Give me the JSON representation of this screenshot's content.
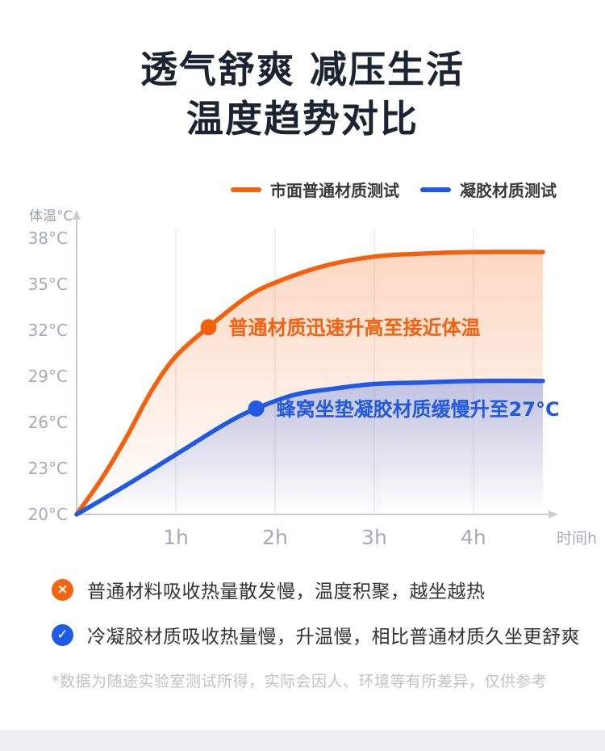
{
  "header": {
    "title_line1": "透气舒爽 减压生活",
    "title_line2": "温度趋势对比"
  },
  "bullets": [
    {
      "icon": "cross-circle-icon",
      "glyph": "×",
      "color": "#f4650f",
      "text": "普通材料吸收热量散发慢，温度积聚，越坐越热"
    },
    {
      "icon": "check-circle-icon",
      "glyph": "✓",
      "color": "#1e5ce8",
      "text": "冷凝胶材质吸收热量慢，升温慢，相比普通材质久坐更舒爽"
    }
  ],
  "footnote": "*数据为随途实验室测试所得，实际会因人、环境等有所差异，仅供参考",
  "chart_data": {
    "type": "line",
    "title": "温度趋势对比",
    "xlabel": "时间h",
    "ylabel": "体温°C",
    "xlim": [
      0,
      4.7
    ],
    "ylim": [
      20,
      38
    ],
    "grid": "vertical-only",
    "legend_position": "top",
    "x_ticks": [
      {
        "value": 1,
        "label": "1h"
      },
      {
        "value": 2,
        "label": "2h"
      },
      {
        "value": 3,
        "label": "3h"
      },
      {
        "value": 4,
        "label": "4h"
      }
    ],
    "y_ticks": [
      {
        "value": 38,
        "label": "38°C"
      },
      {
        "value": 35,
        "label": "35°C"
      },
      {
        "value": 32,
        "label": "32°C"
      },
      {
        "value": 29,
        "label": "29°C"
      },
      {
        "value": 26,
        "label": "26°C"
      },
      {
        "value": 23,
        "label": "23°C"
      },
      {
        "value": 20,
        "label": "20°C"
      }
    ],
    "series": [
      {
        "name": "市面普通材质测试",
        "color": "#f4610e",
        "fill_from": "rgba(244,97,14,0.25)",
        "fill_to": "rgba(244,97,14,0)",
        "x": [
          0,
          0.25,
          0.5,
          0.75,
          1.0,
          1.33,
          1.7,
          2.0,
          2.5,
          3.0,
          3.5,
          4.0,
          4.7
        ],
        "y": [
          20,
          22.3,
          25.0,
          28.0,
          30.3,
          32.2,
          34.1,
          35.1,
          36.2,
          36.8,
          37.0,
          37.1,
          37.1
        ]
      },
      {
        "name": "凝胶材质测试",
        "color": "#2059e6",
        "fill_from": "rgba(32,89,230,0.28)",
        "fill_to": "rgba(32,89,230,0)",
        "x": [
          0,
          0.5,
          1.0,
          1.5,
          1.81,
          2.2,
          2.6,
          3.0,
          3.5,
          4.0,
          4.7
        ],
        "y": [
          20,
          21.9,
          23.9,
          25.9,
          26.9,
          27.8,
          28.2,
          28.5,
          28.6,
          28.7,
          28.7
        ]
      }
    ],
    "annotations": [
      {
        "x": 1.33,
        "y": 32.2,
        "text": "普通材质迅速升高至接近体温",
        "color": "#f4610e",
        "series": "市面普通材质测试"
      },
      {
        "x": 1.81,
        "y": 26.9,
        "text": "蜂窝坐垫凝胶材质缓慢升至27°C",
        "color": "#2059e6",
        "series": "凝胶材质测试"
      }
    ]
  }
}
